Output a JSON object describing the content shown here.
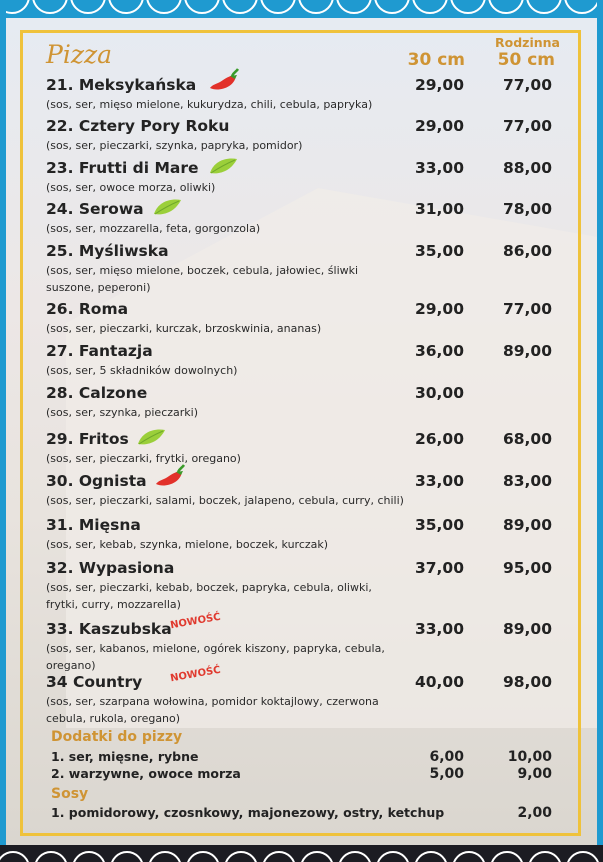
{
  "title": "Pizza",
  "headers": {
    "size30": "30 cm",
    "family": "Rodzinna",
    "size50": "50 cm"
  },
  "pizzas": [
    {
      "name": "21. Meksykańska",
      "desc": "(sos, ser, mięso mielone, kukurydza, chili, cebula, papryka)",
      "p30": "29,00",
      "p50": "77,00",
      "icon": "chili-pepper-icon"
    },
    {
      "name": "22. Cztery Pory Roku",
      "desc": "(sos, ser, pieczarki, szynka, papryka, pomidor)",
      "p30": "29,00",
      "p50": "77,00"
    },
    {
      "name": "23. Frutti di Mare",
      "desc": "(sos, ser, owoce morza, oliwki)",
      "p30": "33,00",
      "p50": "88,00",
      "icon": "leaf-icon"
    },
    {
      "name": "24. Serowa",
      "desc": "(sos, ser, mozzarella, feta, gorgonzola)",
      "p30": "31,00",
      "p50": "78,00",
      "icon": "leaf-icon"
    },
    {
      "name": "25. Myśliwska",
      "desc": "(sos, ser, mięso mielone, boczek, cebula, jałowiec, śliwki suszone, peperoni)",
      "p30": "35,00",
      "p50": "86,00"
    },
    {
      "name": "26. Roma",
      "desc": "(sos, ser, pieczarki, kurczak, brzoskwinia, ananas)",
      "p30": "29,00",
      "p50": "77,00"
    },
    {
      "name": "27. Fantazja",
      "desc": "(sos, ser, 5 składników dowolnych)",
      "p30": "36,00",
      "p50": "89,00"
    },
    {
      "name": "28. Calzone",
      "desc": "(sos, ser, szynka, pieczarki)",
      "p30": "30,00",
      "p50": ""
    },
    {
      "name": "29. Fritos",
      "desc": "(sos, ser, pieczarki, frytki, oregano)",
      "p30": "26,00",
      "p50": "68,00",
      "icon": "leaf-icon"
    },
    {
      "name": "30. Ognista",
      "desc": "(sos, ser, pieczarki, salami, boczek, jalapeno, cebula, curry, chili)",
      "p30": "33,00",
      "p50": "83,00",
      "icon": "chili-pepper-icon"
    },
    {
      "name": "31. Mięsna",
      "desc": "(sos, ser, kebab, szynka, mielone, boczek, kurczak)",
      "p30": "35,00",
      "p50": "89,00"
    },
    {
      "name": "32. Wypasiona",
      "desc": "(sos, ser, pieczarki, kebab, boczek, papryka, cebula, oliwki, frytki, curry, mozzarella)",
      "p30": "37,00",
      "p50": "95,00"
    },
    {
      "name": "33. Kaszubska",
      "desc": "(sos, ser, kabanos, mielone, ogórek kiszony, papryka, cebula, oregano)",
      "p30": "33,00",
      "p50": "89,00",
      "badge": "NOWOŚĆ"
    },
    {
      "name": "34 Country",
      "desc": "(sos, ser, szarpana wołowina, pomidor koktajlowy, czerwona cebula, rukola, oregano)",
      "p30": "40,00",
      "p50": "98,00",
      "badge": "NOWOŚĆ"
    }
  ],
  "extras": {
    "title": "Dodatki do pizzy",
    "items": [
      {
        "name": "1. ser, mięsne, rybne",
        "p30": "6,00",
        "p50": "10,00"
      },
      {
        "name": "2. warzywne, owoce morza",
        "p30": "5,00",
        "p50": "9,00"
      }
    ]
  },
  "sauces": {
    "title": "Sosy",
    "items": [
      {
        "name": "1. pomidorowy, czosnkowy, majonezowy, ostry, ketchup",
        "p50": "2,00"
      }
    ]
  },
  "colors": {
    "accent": "#cf9434",
    "border": "#efc23b",
    "band": "#1f9ad0",
    "new": "#e03a2f"
  }
}
